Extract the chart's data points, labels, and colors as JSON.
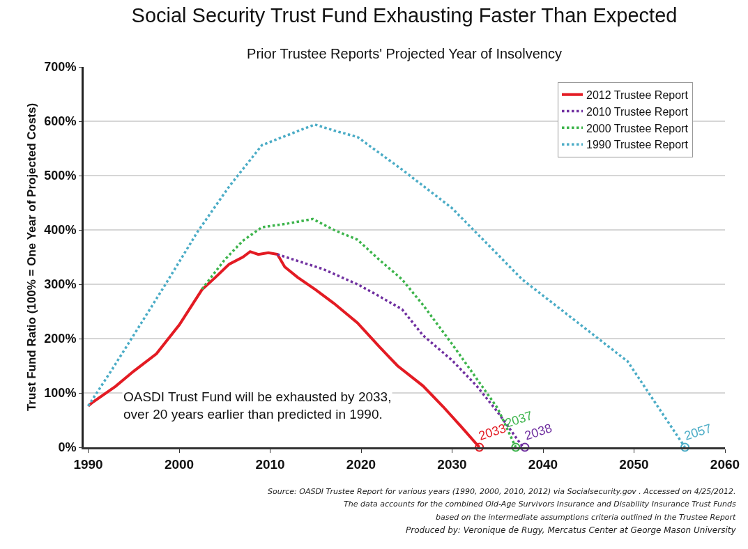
{
  "chart_data": {
    "type": "line",
    "title": "Social Security Trust Fund Exhausting Faster Than Expected",
    "subtitle": "Prior Trustee Reports' Projected Year of Insolvency",
    "ylabel": "Trust Fund Ratio (100% = One Year of Projected Costs)",
    "xlim": [
      1989.5,
      2060
    ],
    "xticks": [
      1990,
      2000,
      2010,
      2020,
      2030,
      2040,
      2050,
      2060
    ],
    "ylim": [
      0,
      700
    ],
    "yticks": [
      {
        "value": 0,
        "label": "0%"
      },
      {
        "value": 100,
        "label": "100%"
      },
      {
        "value": 200,
        "label": "200%"
      },
      {
        "value": 300,
        "label": "300%"
      },
      {
        "value": 400,
        "label": "400%"
      },
      {
        "value": 500,
        "label": "500%"
      },
      {
        "value": 600,
        "label": "600%"
      },
      {
        "value": 700,
        "label": "700%"
      }
    ],
    "grid": "y",
    "legend": "top right",
    "marker": "none",
    "series": [
      {
        "name": "2012 Trustee Report",
        "color": "#e31b23",
        "line_style": "solid",
        "x": [
          1990,
          1990.5,
          1993,
          1995,
          1997.5,
          2000,
          2002.5,
          2004,
          2005.5,
          2007,
          2007.8,
          2008.7,
          2009.8,
          2010.8,
          2011.6,
          2013,
          2015,
          2017,
          2019.6,
          2022,
          2024,
          2026.8,
          2029,
          2031,
          2033
        ],
        "values": [
          76,
          83,
          112,
          140,
          172,
          225,
          290,
          313,
          337,
          350,
          360,
          355,
          358,
          355,
          332,
          313,
          290,
          265,
          229,
          185,
          150,
          113,
          75,
          38,
          0
        ]
      },
      {
        "name": "2010 Trustee Report",
        "color": "#7030a0",
        "line_style": "dotted",
        "x": [
          2010.8,
          2013,
          2015.8,
          2019.6,
          2022,
          2024.5,
          2026.8,
          2030,
          2032.7,
          2035,
          2037.8
        ],
        "values": [
          355,
          343,
          328,
          300,
          278,
          254,
          206,
          160,
          113,
          65,
          0
        ]
      },
      {
        "name": "2000 Trustee Report",
        "color": "#3cb44b",
        "line_style": "dotted",
        "x": [
          2002.5,
          2005,
          2007,
          2009.1,
          2012,
          2014.7,
          2017,
          2019.6,
          2022,
          2024.5,
          2026.8,
          2030,
          2035,
          2037
        ],
        "values": [
          291,
          345,
          380,
          405,
          412,
          420,
          400,
          382,
          345,
          309,
          262,
          190,
          72,
          0
        ]
      },
      {
        "name": "1990 Trustee Report",
        "color": "#4bacc6",
        "line_style": "dotted",
        "x": [
          1990,
          1992.5,
          1995.1,
          1998.5,
          2002,
          2005.5,
          2009.1,
          2012,
          2014.9,
          2017,
          2019.6,
          2024.5,
          2030,
          2037.7,
          2043,
          2049.3,
          2055.6
        ],
        "values": [
          76,
          140,
          209,
          300,
          396,
          480,
          556,
          575,
          594,
          583,
          571,
          511,
          440,
          309,
          240,
          158,
          0
        ]
      },
      {
        "type": "scatter",
        "marker": "circle",
        "x": [
          2033,
          2037,
          2038,
          2055.6
        ],
        "values": [
          0,
          0,
          0,
          0
        ],
        "colors": [
          "#e31b23",
          "#3cb44b",
          "#7030a0",
          "#4bacc6"
        ]
      }
    ],
    "annotations": [
      "OASDI Trust Fund will be exhausted by 2033,\nover 20 years earlier than predicted in 1990.",
      {
        "text": "2033",
        "x": 2033,
        "y": 0
      },
      {
        "text": "2037",
        "x": 2037,
        "y": 0
      },
      {
        "text": "2038",
        "x": 2038,
        "y": 0
      },
      {
        "text": "2057",
        "x": 2055.6,
        "y": 0
      },
      "Source: OASDI Trustee Report for various years (1990, 2000, 2010, 2012) via Socialsecurity.gov . Accessed on 4/25/2012.",
      "The data accounts for the combined Old-Age Survivors Insurance and Disability Insurance Trust Funds",
      "based on the intermediate assumptions criteria outlined in the Trustee Report",
      "Produced by: Veronique de Rugy, Mercatus Center at George Mason University"
    ]
  }
}
